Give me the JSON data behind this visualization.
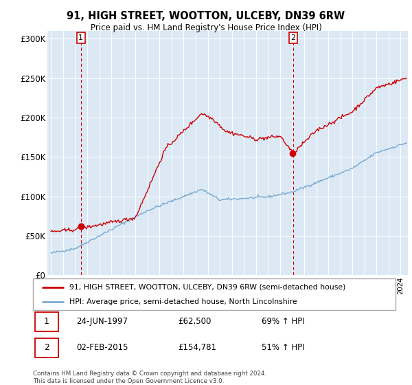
{
  "title": "91, HIGH STREET, WOOTTON, ULCEBY, DN39 6RW",
  "subtitle": "Price paid vs. HM Land Registry's House Price Index (HPI)",
  "property_label": "91, HIGH STREET, WOOTTON, ULCEBY, DN39 6RW (semi-detached house)",
  "hpi_label": "HPI: Average price, semi-detached house, North Lincolnshire",
  "property_color": "#cc0000",
  "hpi_color": "#7aaad0",
  "background_color": "#dce9f5",
  "annotation1_text": "1",
  "annotation2_text": "2",
  "sale1_date_label": "24-JUN-1997",
  "sale1_price_label": "£62,500",
  "sale1_hpi_label": "69% ↑ HPI",
  "sale2_date_label": "02-FEB-2015",
  "sale2_price_label": "£154,781",
  "sale2_hpi_label": "51% ↑ HPI",
  "footer": "Contains HM Land Registry data © Crown copyright and database right 2024.\nThis data is licensed under the Open Government Licence v3.0.",
  "ylim": [
    0,
    310000
  ],
  "yticks": [
    0,
    50000,
    100000,
    150000,
    200000,
    250000,
    300000
  ],
  "ytick_labels": [
    "£0",
    "£50K",
    "£100K",
    "£150K",
    "£200K",
    "£250K",
    "£300K"
  ],
  "sale1_year": 1997.48,
  "sale1_price": 62500,
  "sale2_year": 2015.09,
  "sale2_price": 154781,
  "xmin": 1995.0,
  "xmax": 2024.5
}
